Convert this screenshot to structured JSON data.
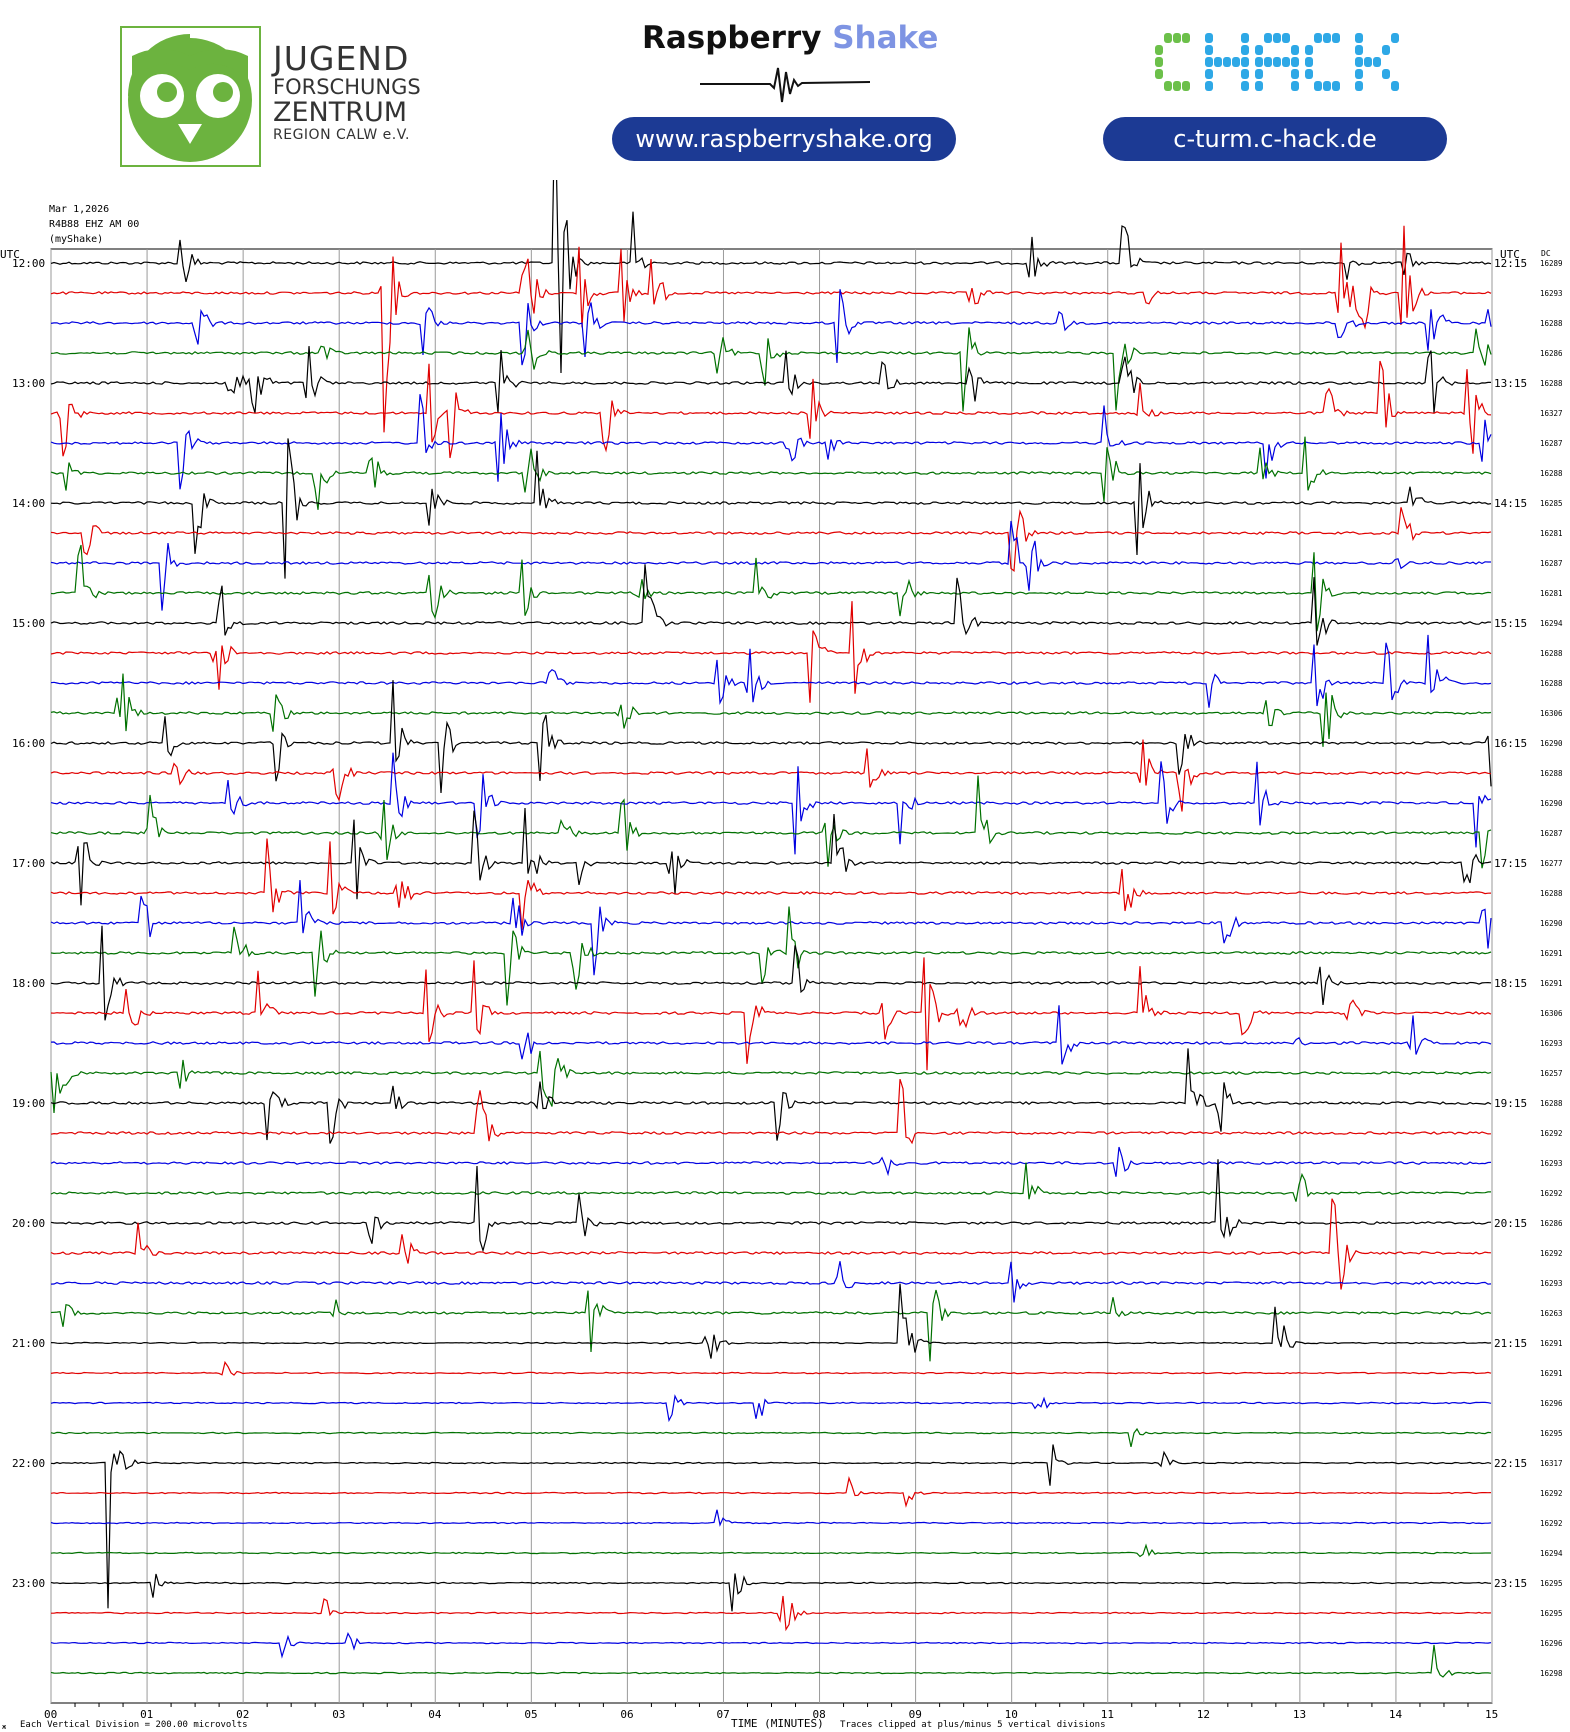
{
  "logos": {
    "jfz": {
      "line1": "JUGEND",
      "line2": "FORSCHUNGS",
      "line3": "ZENTRUM",
      "line4": "REGION CALW e.V.",
      "color": "#6cb33f"
    },
    "raspberry_shake": {
      "word1": "Raspberry",
      "word2": "Shake",
      "url": "www.raspberryshake.org"
    },
    "chack": {
      "logo_text": "CHACK",
      "url": "c-turm.c-hack.de",
      "green": "#6cc04a",
      "blue": "#2ea8e6"
    }
  },
  "header": {
    "date": "Mar 1,2026",
    "station": "R4B88 EHZ AM 00",
    "source": "(myShake)",
    "left_axis_label": "UTC",
    "right_axis_label": "UTC",
    "dc_label": "DC"
  },
  "footer": {
    "scale_text": "Each Vertical Division =  200.00 microvolts",
    "xlabel": "TIME (MINUTES)",
    "clip_text": "Traces clipped at plus/minus 5 vertical divisions",
    "corner_mark": "ж"
  },
  "chart_data": {
    "type": "line",
    "title": "",
    "xlabel": "TIME (MINUTES)",
    "xlim": [
      0,
      15
    ],
    "x_ticks": [
      "00",
      "01",
      "02",
      "03",
      "04",
      "05",
      "06",
      "07",
      "08",
      "09",
      "10",
      "11",
      "12",
      "13",
      "14",
      "15"
    ],
    "colors": [
      "#000000",
      "#e00000",
      "#0000e0",
      "#007000"
    ],
    "left_hour_labels": [
      "12:00",
      "13:00",
      "14:00",
      "15:00",
      "16:00",
      "17:00",
      "18:00",
      "19:00",
      "20:00",
      "21:00",
      "22:00",
      "23:00"
    ],
    "right_hour_labels": [
      "12:15",
      "13:15",
      "14:15",
      "15:15",
      "16:15",
      "17:15",
      "18:15",
      "19:15",
      "20:15",
      "21:15",
      "22:15",
      "23:15"
    ],
    "dc_values": [
      "16289",
      "16293",
      "16288",
      "16286",
      "16288",
      "16327",
      "16287",
      "16288",
      "16285",
      "16281",
      "16287",
      "16281",
      "16294",
      "16288",
      "16288",
      "16306",
      "16290",
      "16288",
      "16290",
      "16287",
      "16277",
      "16288",
      "16290",
      "16291",
      "16291",
      "16306",
      "16293",
      "16257",
      "16288",
      "16292",
      "16293",
      "16292",
      "16286",
      "16292",
      "16293",
      "16263",
      "16291",
      "16291",
      "16296",
      "16295",
      "16317",
      "16292",
      "16292",
      "16294",
      "16295",
      "16295",
      "16296",
      "16298"
    ],
    "series_note": "48 helicorder lines, 15 minutes each, 12:00-23:45 UTC; events listed as [minute, amplitude in divisions] per line",
    "events": [
      [
        [
          1.35,
          1
        ],
        [
          5.25,
          5
        ],
        [
          6.05,
          1.3
        ],
        [
          10.2,
          0.7
        ],
        [
          11.15,
          1.3
        ],
        [
          13.5,
          0.3
        ],
        [
          14.1,
          0.3
        ]
      ],
      [
        [
          3.45,
          3
        ],
        [
          4.9,
          2.5
        ],
        [
          5.5,
          1
        ],
        [
          5.95,
          1
        ],
        [
          6.25,
          1
        ],
        [
          9.55,
          1
        ],
        [
          11.4,
          0.3
        ],
        [
          13.4,
          1.5
        ],
        [
          13.6,
          2
        ],
        [
          14.05,
          2
        ]
      ],
      [
        [
          1.5,
          1
        ],
        [
          3.85,
          1.3
        ],
        [
          4.9,
          1
        ],
        [
          5.55,
          1
        ],
        [
          8.2,
          1
        ],
        [
          10.5,
          0.3
        ],
        [
          13.4,
          1
        ],
        [
          14.35,
          1
        ],
        [
          14.95,
          0.3
        ]
      ],
      [
        [
          2.8,
          0.5
        ],
        [
          4.95,
          1.3
        ],
        [
          6.95,
          0.5
        ],
        [
          7.4,
          1
        ],
        [
          9.5,
          1
        ],
        [
          11.1,
          1
        ],
        [
          14.85,
          0.7
        ]
      ],
      [
        [
          1.85,
          1.3
        ],
        [
          2.1,
          1.3
        ],
        [
          2.65,
          1.3
        ],
        [
          4.65,
          1
        ],
        [
          7.65,
          0.7
        ],
        [
          8.65,
          0.5
        ],
        [
          9.55,
          1
        ],
        [
          11.15,
          1
        ],
        [
          14.35,
          1
        ]
      ],
      [
        [
          0.1,
          1.5
        ],
        [
          3.95,
          1
        ],
        [
          4.15,
          1
        ],
        [
          5.75,
          1
        ],
        [
          7.9,
          1
        ],
        [
          11.3,
          1
        ],
        [
          13.25,
          1
        ],
        [
          13.85,
          1
        ],
        [
          14.75,
          1.5
        ]
      ],
      [
        [
          1.35,
          1
        ],
        [
          3.85,
          1
        ],
        [
          4.65,
          1
        ],
        [
          7.65,
          1
        ],
        [
          8.1,
          0.3
        ],
        [
          10.95,
          1
        ],
        [
          12.65,
          0.7
        ],
        [
          14.9,
          0.7
        ]
      ],
      [
        [
          0.15,
          0.4
        ],
        [
          2.75,
          1
        ],
        [
          3.3,
          1
        ],
        [
          4.95,
          1
        ],
        [
          10.95,
          1.5
        ],
        [
          12.6,
          0.5
        ],
        [
          13.05,
          1
        ]
      ],
      [
        [
          1.5,
          1
        ],
        [
          2.45,
          1.5
        ],
        [
          3.95,
          0.7
        ],
        [
          5.05,
          1
        ],
        [
          11.3,
          1.3
        ],
        [
          14.15,
          0.5
        ]
      ],
      [
        [
          0.35,
          0.7
        ],
        [
          10,
          1.3
        ],
        [
          14.05,
          0.7
        ]
      ],
      [
        [
          1.15,
          1
        ],
        [
          10,
          1
        ],
        [
          10.2,
          0.7
        ],
        [
          14,
          0.3
        ]
      ],
      [
        [
          0.3,
          1
        ],
        [
          3.95,
          1
        ],
        [
          4.9,
          0.7
        ],
        [
          6.05,
          1
        ],
        [
          7.35,
          0.7
        ],
        [
          8.85,
          0.7
        ],
        [
          13.15,
          1
        ]
      ],
      [
        [
          1.75,
          1
        ],
        [
          6.2,
          1
        ],
        [
          9.45,
          1
        ],
        [
          13.15,
          1
        ]
      ],
      [
        [
          1.7,
          1.5
        ],
        [
          7.9,
          1
        ],
        [
          8.35,
          1.3
        ]
      ],
      [
        [
          5.2,
          0.7
        ],
        [
          6.95,
          0.5
        ],
        [
          7.25,
          1
        ],
        [
          12.05,
          0.5
        ],
        [
          13.15,
          1
        ],
        [
          13.9,
          1
        ],
        [
          14.35,
          1.3
        ]
      ],
      [
        [
          0.7,
          1.5
        ],
        [
          2.3,
          1
        ],
        [
          5.9,
          1
        ],
        [
          12.65,
          0.5
        ],
        [
          13.25,
          1
        ]
      ],
      [
        [
          1.2,
          0.5
        ],
        [
          2.35,
          1
        ],
        [
          3.55,
          1.3
        ],
        [
          4.05,
          1
        ],
        [
          5.1,
          1
        ],
        [
          11.75,
          0.7
        ],
        [
          14.95,
          1.3
        ]
      ],
      [
        [
          1.3,
          0.5
        ],
        [
          2.95,
          1
        ],
        [
          8.5,
          0.7
        ],
        [
          11.35,
          1
        ],
        [
          11.75,
          1
        ]
      ],
      [
        [
          1.85,
          0.7
        ],
        [
          3.55,
          1
        ],
        [
          4.45,
          1
        ],
        [
          7.75,
          1
        ],
        [
          8.85,
          0.7
        ],
        [
          11.55,
          1
        ],
        [
          12.55,
          1
        ],
        [
          14.85,
          1
        ]
      ],
      [
        [
          1.0,
          1
        ],
        [
          3.45,
          1
        ],
        [
          5.3,
          0.7
        ],
        [
          5.95,
          0.7
        ],
        [
          8.05,
          1
        ],
        [
          9.65,
          1
        ],
        [
          14.9,
          0.7
        ]
      ],
      [
        [
          0.3,
          1
        ],
        [
          3.15,
          1
        ],
        [
          4.4,
          1
        ],
        [
          4.95,
          1
        ],
        [
          5.5,
          0.5
        ],
        [
          6.45,
          1
        ],
        [
          8.15,
          1
        ],
        [
          14.7,
          1
        ]
      ],
      [
        [
          2.25,
          1
        ],
        [
          2.9,
          1
        ],
        [
          3.6,
          1
        ],
        [
          4.9,
          1
        ],
        [
          11.15,
          1
        ]
      ],
      [
        [
          0.95,
          1
        ],
        [
          2.6,
          1
        ],
        [
          4.8,
          1
        ],
        [
          5.65,
          1
        ],
        [
          12.2,
          1
        ],
        [
          14.9,
          1
        ]
      ],
      [
        [
          1.9,
          1
        ],
        [
          2.75,
          1
        ],
        [
          4.75,
          1
        ],
        [
          5.45,
          1
        ],
        [
          7.4,
          0.7
        ],
        [
          7.7,
          1
        ]
      ],
      [
        [
          0.55,
          1
        ],
        [
          7.75,
          1
        ],
        [
          13.2,
          0.7
        ]
      ],
      [
        [
          0.8,
          1
        ],
        [
          2.15,
          1
        ],
        [
          3.9,
          1
        ],
        [
          4.4,
          1
        ],
        [
          7.25,
          1
        ],
        [
          8.65,
          0.7
        ],
        [
          9.1,
          1.3
        ],
        [
          9.45,
          1
        ],
        [
          11.35,
          1
        ],
        [
          12.4,
          1
        ],
        [
          13.5,
          1
        ]
      ],
      [
        [
          4.9,
          1
        ],
        [
          10.5,
          1
        ],
        [
          14.15,
          0.7
        ],
        [
          12.95,
          0.3
        ]
      ],
      [
        [
          0.05,
          1
        ],
        [
          1.35,
          0.5
        ],
        [
          5.1,
          1.5
        ],
        [
          5.2,
          1
        ]
      ],
      [
        [
          2.25,
          1
        ],
        [
          2.9,
          1
        ],
        [
          3.55,
          0.5
        ],
        [
          5.05,
          1.3
        ],
        [
          7.55,
          0.7
        ],
        [
          11.85,
          1
        ],
        [
          12.15,
          1
        ]
      ],
      [
        [
          4.45,
          1.3
        ],
        [
          8.85,
          1
        ]
      ],
      [
        [
          8.65,
          0.5
        ],
        [
          11.1,
          0.5
        ]
      ],
      [
        [
          10.15,
          0.7
        ],
        [
          12.95,
          1
        ]
      ],
      [
        [
          3.3,
          1
        ],
        [
          4.45,
          1
        ],
        [
          5.5,
          0.7
        ],
        [
          12.15,
          1.3
        ]
      ],
      [
        [
          0.9,
          0.7
        ],
        [
          3.65,
          0.7
        ],
        [
          13.35,
          2
        ]
      ],
      [
        [
          8.2,
          0.5
        ],
        [
          10.0,
          0.5
        ]
      ],
      [
        [
          0.1,
          0.5
        ],
        [
          2.95,
          0.3
        ],
        [
          5.6,
          1
        ],
        [
          9.15,
          1
        ],
        [
          11.05,
          0.3
        ]
      ],
      [
        [
          6.8,
          1
        ],
        [
          8.85,
          1.5
        ],
        [
          12.75,
          1
        ]
      ],
      [
        [
          1.8,
          0.3
        ]
      ],
      [
        [
          6.45,
          0.3
        ],
        [
          7.35,
          0.5
        ],
        [
          10.25,
          0.5
        ]
      ],
      [
        [
          11.25,
          0.3
        ]
      ],
      [
        [
          0.6,
          2.5
        ],
        [
          10.4,
          0.5
        ],
        [
          11.55,
          0.3
        ]
      ],
      [
        [
          8.3,
          0.3
        ],
        [
          8.9,
          0.3
        ]
      ],
      [
        [
          6.9,
          0.5
        ]
      ],
      [
        [
          11.35,
          0.3
        ]
      ],
      [
        [
          1.05,
          0.3
        ],
        [
          7.1,
          0.5
        ]
      ],
      [
        [
          2.85,
          0.3
        ],
        [
          7.6,
          1.3
        ]
      ],
      [
        [
          2.4,
          0.4
        ],
        [
          3.1,
          0.3
        ]
      ],
      [
        [
          14.4,
          0.5
        ]
      ]
    ]
  }
}
